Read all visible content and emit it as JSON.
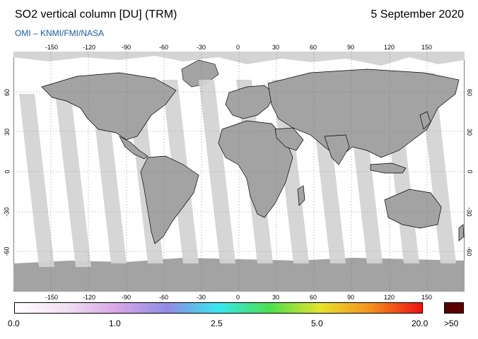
{
  "header": {
    "title": "SO2 vertical column [DU] (TRM)",
    "date": "5 September 2020",
    "credit": "OMI  –  KNMI/FMI/NASA"
  },
  "map": {
    "projection": "equirectangular",
    "lon_range": [
      -180,
      180
    ],
    "lat_range": [
      -90,
      90
    ],
    "lon_ticks": [
      "-150",
      "-120",
      "-90",
      "-60",
      "-30",
      "0",
      "30",
      "60",
      "90",
      "120",
      "150"
    ],
    "lat_ticks": [
      "60",
      "30",
      "0",
      "-30",
      "-60"
    ],
    "grid": "dotted",
    "colors": {
      "land_dark": "#a3a3a3",
      "swath_light": "#d4d4d4",
      "ocean": "#ffffff",
      "coast": "#000000"
    }
  },
  "colorbar": {
    "labels": [
      "0.0",
      "1.0",
      "2.5",
      "5.0",
      "20.0",
      ">50"
    ],
    "colors": [
      "#ffffff",
      "#f2dff2",
      "#d9a6e8",
      "#8f8ce6",
      "#35e8f0",
      "#4ddf4d",
      "#e8e32a",
      "#f58f1f",
      "#ee1010"
    ],
    "overflow_color": "#5a0000"
  }
}
